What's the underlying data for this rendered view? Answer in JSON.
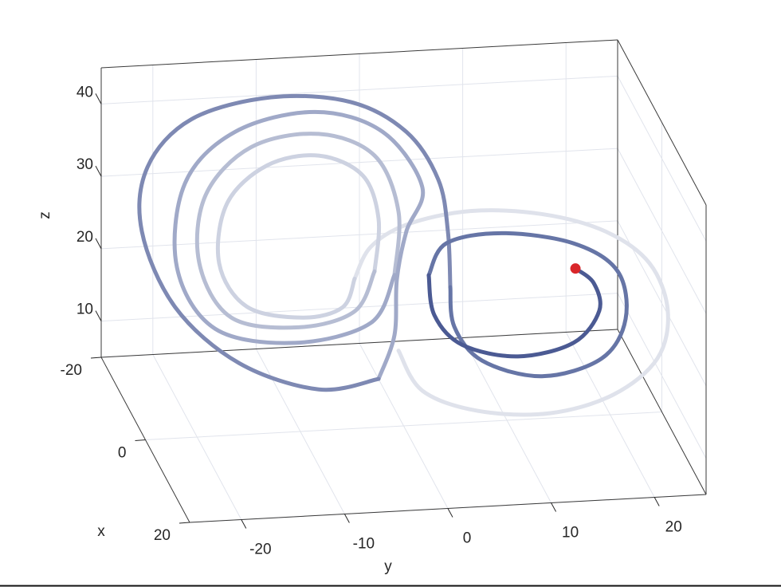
{
  "chart_data": {
    "type": "line3d",
    "xlabel": "x",
    "ylabel": "y",
    "zlabel": "z",
    "xlim": [
      -20,
      20
    ],
    "ylim": [
      -25,
      25
    ],
    "zlim": [
      5,
      45
    ],
    "xticks": [
      -20,
      0,
      20
    ],
    "yticks": [
      -20,
      -10,
      0,
      10,
      20
    ],
    "zticks": [
      10,
      20,
      30,
      40
    ],
    "grid": true,
    "series": [
      {
        "color": "#dfe2eb",
        "x": [
          -0.41,
          1.49,
          5.94,
          11.66,
          16.75,
          18,
          18,
          18,
          16.11,
          11.03,
          5.31,
          0.22,
          -2.64,
          -3.91
        ],
        "y": [
          -0.41,
          1.49,
          5.94,
          11.66,
          16.75,
          20.72,
          21.72,
          19.95,
          16.11,
          11.03,
          5.31,
          0.22,
          -2.64,
          -3.91
        ],
        "z": [
          15.2,
          10.6,
          10.0,
          12.5,
          17.6,
          23.0,
          29.5,
          36.2,
          39.8,
          39.7,
          37.3,
          32.9,
          28.4,
          23.4
        ]
      },
      {
        "color": "#cdd2e1",
        "x": [
          -3.91,
          -4.86,
          -8.04,
          -12.49,
          -14.71,
          -14.08,
          -10.9,
          -6.77,
          -3.27,
          -2.0,
          -2.32
        ],
        "y": [
          -3.91,
          -4.86,
          -8.04,
          -12.49,
          -14.71,
          -14.08,
          -10.9,
          -6.77,
          -3.27,
          -2.0,
          -2.32
        ],
        "z": [
          23.4,
          19.0,
          16.0,
          15.3,
          20.2,
          28.8,
          35.6,
          39.0,
          38.0,
          32.6,
          25.2
        ]
      },
      {
        "color": "#b6bdd3",
        "x": [
          -2.32,
          -3.91,
          -8.36,
          -13.76,
          -16.3,
          -15.79,
          -12.17,
          -6.77,
          -2.32,
          -0.41,
          -0.73
        ],
        "y": [
          -2.32,
          -3.91,
          -8.36,
          -13.76,
          -16.3,
          -15.79,
          -12.17,
          -6.77,
          -2.32,
          -0.41,
          -0.73
        ],
        "z": [
          25.2,
          18.9,
          14.5,
          13.2,
          19.5,
          29.1,
          37.5,
          42.0,
          41.2,
          34.4,
          25.5
        ]
      },
      {
        "color": "#a0a9c8",
        "x": [
          -0.73,
          -2.64,
          -8.67,
          -15.03,
          -18.08,
          -17.44,
          -13.44,
          -12,
          -8,
          1.49,
          0.22,
          -0.54,
          -0.73,
          -2.0
        ],
        "y": [
          -0.73,
          -2.64,
          -8.67,
          -15.03,
          -18.08,
          -17.44,
          -13.44,
          -6.03,
          -0.33,
          1.49,
          0.22,
          -0.54,
          -0.73,
          -2.0
        ],
        "z": [
          25.5,
          17.9,
          12.2,
          11.0,
          18.0,
          29.9,
          39.0,
          42.0,
          41.1,
          38.7,
          32.0,
          25.0,
          17.2,
          10.5
        ]
      },
      {
        "color": "#7e89b3",
        "x": [
          -2.0,
          -6.77,
          -13.12,
          -18.21,
          -19,
          -19,
          -16.94,
          -16,
          -12,
          -8,
          2.76,
          3.53,
          3.72
        ],
        "y": [
          -2.0,
          -6.77,
          -13.12,
          -18.21,
          -21.28,
          -20.74,
          -16.94,
          -9.42,
          -2.56,
          1.98,
          2.76,
          3.53,
          3.72
        ],
        "z": [
          10.5,
          6.7,
          7.2,
          12.4,
          22.7,
          31.5,
          39.0,
          42.0,
          43.1,
          40.9,
          40.4,
          33.6,
          26.0
        ]
      },
      {
        "color": "#6675a6",
        "x": [
          3.72,
          4.04,
          6.26,
          11.03,
          15.79,
          17.7,
          17.06,
          13.57,
          7.85,
          3.4,
          2.0
        ],
        "y": [
          3.72,
          4.04,
          6.26,
          11.03,
          15.79,
          17.7,
          17.06,
          13.57,
          7.85,
          3.4,
          2.0
        ],
        "z": [
          26.0,
          20.7,
          17.1,
          17.3,
          22.1,
          28.5,
          34.8,
          36.9,
          35.5,
          31.9,
          26.8
        ]
      },
      {
        "color": "#4b5a93",
        "x": [
          2.0,
          2.45,
          4.67,
          9.12,
          13.57,
          15.6,
          15.16,
          13.7
        ],
        "y": [
          2.0,
          2.45,
          4.67,
          9.12,
          13.57,
          15.6,
          15.16,
          13.7
        ],
        "z": [
          26.8,
          21.5,
          18.5,
          19.1,
          23.2,
          28.6,
          32.2,
          33.5
        ]
      }
    ],
    "marker": {
      "x": 13.7,
      "y": 13.7,
      "z": 33.5,
      "color": "#d9262a"
    }
  }
}
